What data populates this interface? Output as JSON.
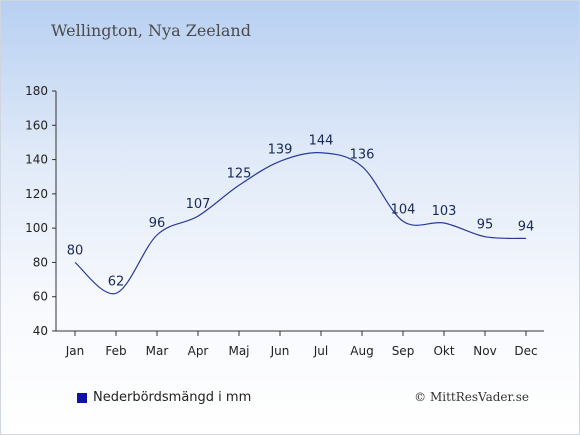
{
  "title": "Wellington, Nya Zeeland",
  "legend": {
    "label": "Nederbördsmängd i mm",
    "color": "#1111aa"
  },
  "copyright": "© MittResVader.se",
  "colors": {
    "line": "#2a3a9a",
    "axis": "#333333"
  },
  "chart_data": {
    "type": "line",
    "categories": [
      "Jan",
      "Feb",
      "Mar",
      "Apr",
      "Maj",
      "Jun",
      "Jul",
      "Aug",
      "Sep",
      "Okt",
      "Nov",
      "Dec"
    ],
    "series": [
      {
        "name": "Nederbördsmängd i mm",
        "values": [
          80,
          62,
          96,
          107,
          125,
          139,
          144,
          136,
          104,
          103,
          95,
          94
        ]
      }
    ],
    "data_labels": [
      "80",
      "62",
      "96",
      "107",
      "125",
      "139",
      "144",
      "136",
      "104",
      "103",
      "95",
      "94"
    ],
    "ylim": [
      40,
      180
    ],
    "yticks": [
      40,
      60,
      80,
      100,
      120,
      140,
      160,
      180
    ],
    "grid": false,
    "legend_position": "bottom-left"
  }
}
